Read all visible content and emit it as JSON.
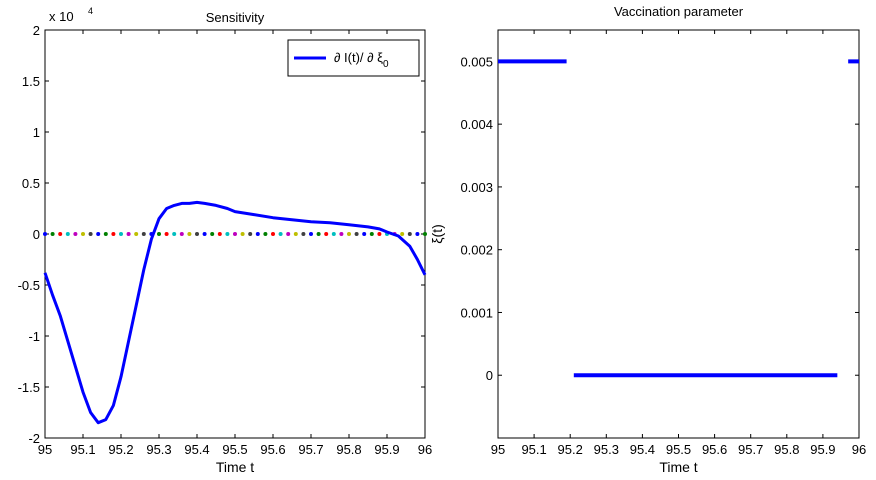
{
  "chart_data": [
    {
      "type": "line",
      "title": "Sensitivity",
      "xlabel": "Time t",
      "ylabel": "",
      "exponent_label": "x 10",
      "exponent_power": "4",
      "xlim": [
        95,
        96
      ],
      "ylim": [
        -2,
        2
      ],
      "x_ticks": [
        "95",
        "95.1",
        "95.2",
        "95.3",
        "95.4",
        "95.5",
        "95.6",
        "95.7",
        "95.8",
        "95.9",
        "96"
      ],
      "y_ticks": [
        "-2",
        "-1.5",
        "-1",
        "-0.5",
        "0",
        "0.5",
        "1",
        "1.5",
        "2"
      ],
      "legend": {
        "label_prefix": "∂ I(t)/ ∂ ξ",
        "label_subscript": "0",
        "position": "top-right"
      },
      "series": [
        {
          "name": "∂ I(t)/ ∂ ξ0",
          "color": "#0000ff",
          "x": [
            95.0,
            95.02,
            95.04,
            95.06,
            95.08,
            95.1,
            95.12,
            95.14,
            95.16,
            95.18,
            95.2,
            95.22,
            95.24,
            95.26,
            95.28,
            95.3,
            95.32,
            95.34,
            95.36,
            95.38,
            95.4,
            95.42,
            95.45,
            95.48,
            95.5,
            95.55,
            95.6,
            95.65,
            95.7,
            95.75,
            95.8,
            95.85,
            95.88,
            95.9,
            95.93,
            95.96,
            95.98,
            96.0
          ],
          "y": [
            -0.38,
            -0.6,
            -0.8,
            -1.05,
            -1.3,
            -1.55,
            -1.75,
            -1.85,
            -1.82,
            -1.68,
            -1.4,
            -1.05,
            -0.7,
            -0.35,
            -0.05,
            0.15,
            0.25,
            0.28,
            0.3,
            0.3,
            0.31,
            0.3,
            0.28,
            0.25,
            0.22,
            0.19,
            0.16,
            0.14,
            0.12,
            0.11,
            0.09,
            0.07,
            0.05,
            0.02,
            -0.02,
            -0.12,
            -0.25,
            -0.4
          ]
        }
      ],
      "zero_markers": {
        "count": 50,
        "colors": [
          "#0000ff",
          "#008000",
          "#ff0000",
          "#00bfbf",
          "#bf00bf",
          "#bfbf00",
          "#404040"
        ]
      }
    },
    {
      "type": "line",
      "title": "Vaccination parameter",
      "xlabel": "Time t",
      "ylabel": "ξ(t)",
      "xlim": [
        95,
        96
      ],
      "ylim": [
        -0.001,
        0.0055
      ],
      "x_ticks": [
        "95",
        "95.1",
        "95.2",
        "95.3",
        "95.4",
        "95.5",
        "95.6",
        "95.7",
        "95.8",
        "95.9",
        "96"
      ],
      "y_ticks": [
        "0",
        "0.001",
        "0.002",
        "0.003",
        "0.004",
        "0.005"
      ],
      "series": [
        {
          "color": "#0000ff",
          "segments": [
            {
              "x": [
                95.0,
                95.19
              ],
              "y": [
                0.005,
                0.005
              ]
            },
            {
              "x": [
                95.21,
                95.94
              ],
              "y": [
                0.0,
                0.0
              ]
            },
            {
              "x": [
                95.97,
                96.0
              ],
              "y": [
                0.005,
                0.005
              ]
            }
          ]
        }
      ]
    }
  ]
}
